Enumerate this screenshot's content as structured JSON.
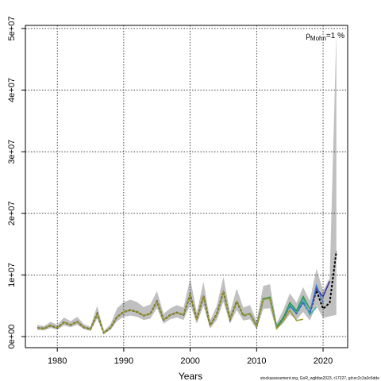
{
  "chart_data": {
    "type": "line",
    "xlabel": "Years",
    "footer": "stockassessment.org, GoR_wgbfas2023, r17227, git:ec2c2a0c6dde",
    "annotation": {
      "symbol": "ρ",
      "subscript": "Mohn",
      "text": "=1 %"
    },
    "xlim": [
      1975.2,
      2023.7
    ],
    "ylim": [
      -1800000.0,
      50500000.0
    ],
    "xticks": [
      1980,
      1990,
      2000,
      2010,
      2020
    ],
    "yticks": [
      {
        "value": 0,
        "label": "0e+00"
      },
      {
        "value": 10000000.0,
        "label": "1e+07"
      },
      {
        "value": 20000000.0,
        "label": "2e+07"
      },
      {
        "value": 30000000.0,
        "label": "3e+07"
      },
      {
        "value": 40000000.0,
        "label": "4e+07"
      },
      {
        "value": 50000000.0,
        "label": "5e+07"
      }
    ],
    "grid": true,
    "band_color": "#c0c0c0",
    "x": [
      1977,
      1978,
      1979,
      1980,
      1981,
      1982,
      1983,
      1984,
      1985,
      1986,
      1987,
      1988,
      1989,
      1990,
      1991,
      1992,
      1993,
      1994,
      1995,
      1996,
      1997,
      1998,
      1999,
      2000,
      2001,
      2002,
      2003,
      2004,
      2005,
      2006,
      2007,
      2008,
      2009,
      2010,
      2011,
      2012,
      2013,
      2014,
      2015,
      2016,
      2017,
      2018,
      2019,
      2020,
      2021,
      2022
    ],
    "lower": [
      1100000.0,
      1000000.0,
      1400000.0,
      1100000.0,
      1800000.0,
      1500000.0,
      1900000.0,
      1200000.0,
      900000.0,
      2900000.0,
      400000.0,
      1100000.0,
      2500000.0,
      3200000.0,
      3400000.0,
      3200000.0,
      2700000.0,
      2900000.0,
      4600000.0,
      2100000.0,
      2800000.0,
      3100000.0,
      2700000.0,
      5100000.0,
      2100000.0,
      5000000.0,
      1300000.0,
      2700000.0,
      5600000.0,
      2100000.0,
      4300000.0,
      2600000.0,
      2800000.0,
      1200000.0,
      4500000.0,
      4600000.0,
      1100000.0,
      2200000.0,
      3600000.0,
      2700000.0,
      4000000.0,
      2600000.0,
      5000000.0,
      3000000.0,
      3300000.0,
      3500000.0
    ],
    "upper": [
      1900000.0,
      1700000.0,
      2400000.0,
      1900000.0,
      3100000.0,
      2500000.0,
      3200000.0,
      2000000.0,
      1600000.0,
      5000000.0,
      900000.0,
      2000000.0,
      4600000.0,
      5600000.0,
      6000000.0,
      5600000.0,
      4800000.0,
      5200000.0,
      7400000.0,
      3700000.0,
      4600000.0,
      5100000.0,
      4700000.0,
      9400000.0,
      3900000.0,
      8900000.0,
      2600000.0,
      5000000.0,
      9700000.0,
      3900000.0,
      7800000.0,
      4700000.0,
      5100000.0,
      2500000.0,
      8200000.0,
      8500000.0,
      2200000.0,
      4300000.0,
      7000000.0,
      5500000.0,
      8000000.0,
      5800000.0,
      11000000.0,
      7500000.0,
      9500000.0,
      49500000.0
    ],
    "series": [
      {
        "color": "#000000",
        "dashed": true,
        "values": [
          1400000.0,
          1300000.0,
          1800000.0,
          1400000.0,
          2300000.0,
          1900000.0,
          2400000.0,
          1500000.0,
          1200000.0,
          3700000.0,
          600000.0,
          1400000.0,
          3200000.0,
          4000000.0,
          4300000.0,
          4000000.0,
          3400000.0,
          3700000.0,
          5700000.0,
          2700000.0,
          3500000.0,
          3900000.0,
          3500000.0,
          6800000.0,
          2800000.0,
          6600000.0,
          1800000.0,
          3600000.0,
          7300000.0,
          2800000.0,
          5700000.0,
          3400000.0,
          3700000.0,
          1700000.0,
          6100000.0,
          6300000.0,
          1500000.0,
          3000000.0,
          5000000.0,
          3800000.0,
          5600000.0,
          3800000.0,
          7500000.0,
          4500000.0,
          5500000.0,
          13800000.0
        ]
      },
      {
        "color": "#3a2a9a",
        "values": [
          null,
          null,
          null,
          null,
          null,
          null,
          null,
          null,
          null,
          null,
          null,
          null,
          null,
          null,
          null,
          null,
          null,
          null,
          null,
          null,
          null,
          null,
          null,
          null,
          null,
          null,
          null,
          null,
          null,
          null,
          null,
          3400000.0,
          3700000.0,
          1700000.0,
          6100000.0,
          6300000.0,
          1500000.0,
          3000000.0,
          5000000.0,
          3800000.0,
          5600000.0,
          3800000.0,
          7800000.0,
          6500000.0,
          9000000.0,
          null
        ]
      },
      {
        "color": "#3a7ad0",
        "values": [
          null,
          null,
          null,
          null,
          null,
          null,
          null,
          null,
          null,
          null,
          null,
          null,
          null,
          null,
          null,
          null,
          null,
          null,
          null,
          null,
          null,
          null,
          null,
          null,
          null,
          null,
          null,
          null,
          null,
          null,
          null,
          3400000.0,
          3700000.0,
          1700000.0,
          6100000.0,
          6300000.0,
          1500000.0,
          3000000.0,
          5000000.0,
          3800000.0,
          5600000.0,
          3800000.0,
          8300000.0,
          5500000.0,
          null,
          null
        ]
      },
      {
        "color": "#40b0b0",
        "values": [
          null,
          null,
          null,
          null,
          null,
          null,
          null,
          null,
          null,
          null,
          null,
          null,
          null,
          null,
          null,
          null,
          null,
          null,
          null,
          null,
          null,
          null,
          null,
          null,
          null,
          null,
          null,
          null,
          null,
          null,
          null,
          3400000.0,
          3700000.0,
          1700000.0,
          6100000.0,
          6300000.0,
          1500000.0,
          3000000.0,
          5200000.0,
          4000000.0,
          6200000.0,
          3500000.0,
          4800000.0,
          null,
          null,
          null
        ]
      },
      {
        "color": "#2a9a4a",
        "values": [
          null,
          null,
          null,
          null,
          null,
          null,
          null,
          null,
          null,
          null,
          null,
          null,
          null,
          null,
          null,
          null,
          null,
          null,
          null,
          null,
          null,
          null,
          null,
          null,
          null,
          null,
          null,
          null,
          null,
          null,
          null,
          3400000.0,
          3700000.0,
          1700000.0,
          6100000.0,
          6400000.0,
          1500000.0,
          3000000.0,
          5500000.0,
          4200000.0,
          6500000.0,
          4500000.0,
          null,
          null,
          null,
          null
        ]
      },
      {
        "color": "#9a9a30",
        "values": [
          1400000.0,
          1300000.0,
          1800000.0,
          1400000.0,
          2300000.0,
          1900000.0,
          2400000.0,
          1500000.0,
          1200000.0,
          3700000.0,
          600000.0,
          1400000.0,
          3200000.0,
          4000000.0,
          4300000.0,
          4000000.0,
          3400000.0,
          3700000.0,
          5700000.0,
          2700000.0,
          3500000.0,
          3900000.0,
          3500000.0,
          6800000.0,
          2800000.0,
          6600000.0,
          1800000.0,
          3600000.0,
          7300000.0,
          2800000.0,
          5700000.0,
          3400000.0,
          3700000.0,
          1700000.0,
          6000000.0,
          6200000.0,
          1300000.0,
          2500000.0,
          4300000.0,
          2600000.0,
          2800000.0,
          null,
          null,
          null,
          null,
          null
        ]
      }
    ]
  }
}
